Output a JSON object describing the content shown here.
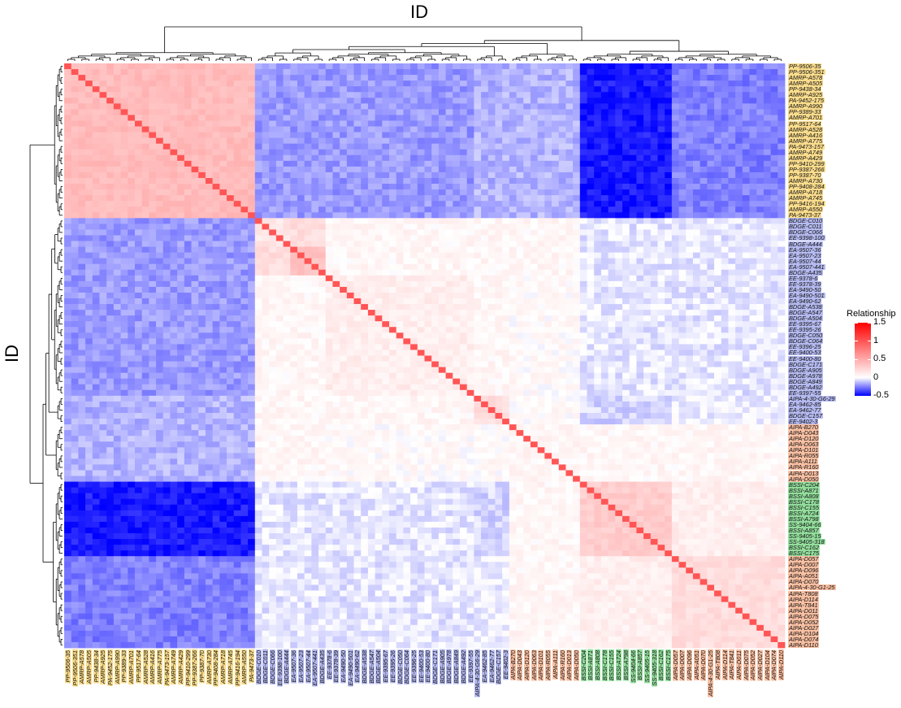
{
  "chart_data": {
    "type": "heatmap",
    "title": "",
    "xlabel": "ID",
    "ylabel": "ID",
    "legend": {
      "title": "Relationship",
      "ticks": [
        "1.5",
        "1",
        "0.5",
        "0",
        "-0.5"
      ],
      "tick_values": [
        1.5,
        1,
        0.5,
        0,
        -0.5
      ],
      "range": [
        -0.5,
        1.5
      ],
      "low_color": "#0000FF",
      "mid_color": "#FFFFFF",
      "high_color": "#FF0000",
      "placement": "right"
    },
    "group_colors": {
      "AMRP_PP_PA": "#F9DC8C",
      "BDGE_EE_EA": "#B5BAF0",
      "AIPA": "#F8BFA2",
      "BSSI_SS": "#93DD9C"
    },
    "labels": [
      {
        "id": "PP-9506-35",
        "g": "AMRP_PP_PA"
      },
      {
        "id": "PP-9506-351",
        "g": "AMRP_PP_PA"
      },
      {
        "id": "AMRP-A578",
        "g": "AMRP_PP_PA"
      },
      {
        "id": "AMRP-A505",
        "g": "AMRP_PP_PA"
      },
      {
        "id": "PP-9438-34",
        "g": "AMRP_PP_PA"
      },
      {
        "id": "AMRP-A925",
        "g": "AMRP_PP_PA"
      },
      {
        "id": "PA-9452-175",
        "g": "AMRP_PP_PA"
      },
      {
        "id": "AMRP-A990",
        "g": "AMRP_PP_PA"
      },
      {
        "id": "PP-9389-33",
        "g": "AMRP_PP_PA"
      },
      {
        "id": "AMRP-A701",
        "g": "AMRP_PP_PA"
      },
      {
        "id": "PP-9517-64",
        "g": "AMRP_PP_PA"
      },
      {
        "id": "AMRP-A528",
        "g": "AMRP_PP_PA"
      },
      {
        "id": "AMRP-A416",
        "g": "AMRP_PP_PA"
      },
      {
        "id": "AMRP-A775",
        "g": "AMRP_PP_PA"
      },
      {
        "id": "PA-9473-157",
        "g": "AMRP_PP_PA"
      },
      {
        "id": "AMRP-A749",
        "g": "AMRP_PP_PA"
      },
      {
        "id": "AMRP-A429",
        "g": "AMRP_PP_PA"
      },
      {
        "id": "PP-9410-299",
        "g": "AMRP_PP_PA"
      },
      {
        "id": "PP-9387-266",
        "g": "AMRP_PP_PA"
      },
      {
        "id": "PP-9387-70",
        "g": "AMRP_PP_PA"
      },
      {
        "id": "AMRP-A730",
        "g": "AMRP_PP_PA"
      },
      {
        "id": "PP-9408-284",
        "g": "AMRP_PP_PA"
      },
      {
        "id": "AMRP-A718",
        "g": "AMRP_PP_PA"
      },
      {
        "id": "AMRP-A745",
        "g": "AMRP_PP_PA"
      },
      {
        "id": "PP-9416-194",
        "g": "AMRP_PP_PA"
      },
      {
        "id": "AMRP-A550",
        "g": "AMRP_PP_PA"
      },
      {
        "id": "PA-9473-37",
        "g": "AMRP_PP_PA"
      },
      {
        "id": "BDGE-C010",
        "g": "BDGE_EE_EA"
      },
      {
        "id": "BDGE-C011",
        "g": "BDGE_EE_EA"
      },
      {
        "id": "BDGE-C066",
        "g": "BDGE_EE_EA"
      },
      {
        "id": "EE-9398-100",
        "g": "BDGE_EE_EA"
      },
      {
        "id": "BDGE-A444",
        "g": "BDGE_EE_EA"
      },
      {
        "id": "EA-9507-36",
        "g": "BDGE_EE_EA"
      },
      {
        "id": "EA-9507-23",
        "g": "BDGE_EE_EA"
      },
      {
        "id": "EA-9507-44",
        "g": "BDGE_EE_EA"
      },
      {
        "id": "EA-9507-441",
        "g": "BDGE_EE_EA"
      },
      {
        "id": "BDGE-A435",
        "g": "BDGE_EE_EA"
      },
      {
        "id": "EE-9378-6",
        "g": "BDGE_EE_EA"
      },
      {
        "id": "EE-9378-39",
        "g": "BDGE_EE_EA"
      },
      {
        "id": "EA-9490-50",
        "g": "BDGE_EE_EA"
      },
      {
        "id": "EA-9490-501",
        "g": "BDGE_EE_EA"
      },
      {
        "id": "EA-9490-62",
        "g": "BDGE_EE_EA"
      },
      {
        "id": "BDGE-A538",
        "g": "BDGE_EE_EA"
      },
      {
        "id": "BDGE-A547",
        "g": "BDGE_EE_EA"
      },
      {
        "id": "BDGE-A504",
        "g": "BDGE_EE_EA"
      },
      {
        "id": "EE-9395-67",
        "g": "BDGE_EE_EA"
      },
      {
        "id": "EE-9395-26",
        "g": "BDGE_EE_EA"
      },
      {
        "id": "BDGE-C050",
        "g": "BDGE_EE_EA"
      },
      {
        "id": "BDGE-C064",
        "g": "BDGE_EE_EA"
      },
      {
        "id": "EE-9396-25",
        "g": "BDGE_EE_EA"
      },
      {
        "id": "EE-9400-53",
        "g": "BDGE_EE_EA"
      },
      {
        "id": "EE-9400-80",
        "g": "BDGE_EE_EA"
      },
      {
        "id": "BDGE-C171",
        "g": "BDGE_EE_EA"
      },
      {
        "id": "BDGE-A905",
        "g": "BDGE_EE_EA"
      },
      {
        "id": "BDGE-A978",
        "g": "BDGE_EE_EA"
      },
      {
        "id": "BDGE-A849",
        "g": "BDGE_EE_EA"
      },
      {
        "id": "BDGE-A492",
        "g": "BDGE_EE_EA"
      },
      {
        "id": "EE-9397-55",
        "g": "BDGE_EE_EA"
      },
      {
        "id": "AIPA-4-30-G6-29",
        "g": "BDGE_EE_EA"
      },
      {
        "id": "EA-9462-85",
        "g": "BDGE_EE_EA"
      },
      {
        "id": "EA-9462-77",
        "g": "BDGE_EE_EA"
      },
      {
        "id": "BDGE-C157",
        "g": "BDGE_EE_EA"
      },
      {
        "id": "EE-9402-3",
        "g": "BDGE_EE_EA"
      },
      {
        "id": "AIPA-B270",
        "g": "AIPA"
      },
      {
        "id": "AIPA-D043",
        "g": "AIPA"
      },
      {
        "id": "AIPA-D120",
        "g": "AIPA"
      },
      {
        "id": "AIPA-D063",
        "g": "AIPA"
      },
      {
        "id": "AIPA-D101",
        "g": "AIPA"
      },
      {
        "id": "AIPA-R055",
        "g": "AIPA"
      },
      {
        "id": "AIPA-A111",
        "g": "AIPA"
      },
      {
        "id": "AIPA-R160",
        "g": "AIPA"
      },
      {
        "id": "AIPA-D013",
        "g": "AIPA"
      },
      {
        "id": "AIPA-D050",
        "g": "AIPA"
      },
      {
        "id": "BSSI-C204",
        "g": "BSSI_SS"
      },
      {
        "id": "BSSI-A871",
        "g": "BSSI_SS"
      },
      {
        "id": "BSSI-A808",
        "g": "BSSI_SS"
      },
      {
        "id": "BSSI-C178",
        "g": "BSSI_SS"
      },
      {
        "id": "BSSI-C155",
        "g": "BSSI_SS"
      },
      {
        "id": "BSSI-A724",
        "g": "BSSI_SS"
      },
      {
        "id": "BSSI-A798",
        "g": "BSSI_SS"
      },
      {
        "id": "SS-9404-66",
        "g": "BSSI_SS"
      },
      {
        "id": "BSSI-A857",
        "g": "BSSI_SS"
      },
      {
        "id": "SS-9405-15",
        "g": "BSSI_SS"
      },
      {
        "id": "SS-9405-318",
        "g": "BSSI_SS"
      },
      {
        "id": "BSSI-C162",
        "g": "BSSI_SS"
      },
      {
        "id": "BSSI-C175",
        "g": "BSSI_SS"
      },
      {
        "id": "AIPA-D057",
        "g": "AIPA"
      },
      {
        "id": "AIPA-D007",
        "g": "AIPA"
      },
      {
        "id": "AIPA-D096",
        "g": "AIPA"
      },
      {
        "id": "AIPA-A051",
        "g": "AIPA"
      },
      {
        "id": "AIPA-D070",
        "g": "AIPA"
      },
      {
        "id": "AIPA-4-30-G1-25",
        "g": "AIPA"
      },
      {
        "id": "AIPA-T808",
        "g": "AIPA"
      },
      {
        "id": "AIPA-D114",
        "g": "AIPA"
      },
      {
        "id": "AIPA-T841",
        "g": "AIPA"
      },
      {
        "id": "AIPA-D011",
        "g": "AIPA"
      },
      {
        "id": "AIPA-D075",
        "g": "AIPA"
      },
      {
        "id": "AIPA-D052",
        "g": "AIPA"
      },
      {
        "id": "AIPA-D027",
        "g": "AIPA"
      },
      {
        "id": "AIPA-D104",
        "g": "AIPA"
      },
      {
        "id": "AIPA-D074",
        "g": "AIPA"
      },
      {
        "id": "AIPA-D110",
        "g": "AIPA"
      }
    ],
    "clusters": [
      {
        "first": "PP-9506-35",
        "last": "PA-9473-37"
      },
      {
        "first": "BDGE-C010",
        "last": "BDGE-A444"
      },
      {
        "first": "EA-9507-36",
        "last": "BDGE-A435"
      },
      {
        "first": "EE-9378-6",
        "last": "EE-9397-55"
      },
      {
        "first": "AIPA-4-30-G6-29",
        "last": "EE-9402-3"
      },
      {
        "first": "AIPA-B270",
        "last": "AIPA-D050"
      },
      {
        "first": "BSSI-C204",
        "last": "BSSI-C175"
      },
      {
        "first": "AIPA-D057",
        "last": "AIPA-D110"
      }
    ],
    "cluster_mean_relationship": [
      [
        0.4,
        -0.2,
        -0.2,
        -0.2,
        -0.15,
        -0.15,
        -0.45,
        -0.25
      ],
      [
        -0.2,
        0.15,
        0.2,
        0.05,
        0.05,
        0.05,
        -0.05,
        -0.05
      ],
      [
        -0.2,
        0.2,
        0.35,
        0.05,
        0.05,
        0.05,
        -0.05,
        -0.05
      ],
      [
        -0.2,
        0.05,
        0.05,
        0.1,
        0.05,
        0.03,
        -0.05,
        -0.05
      ],
      [
        -0.15,
        0.05,
        0.05,
        0.05,
        0.2,
        0.03,
        -0.08,
        -0.03
      ],
      [
        -0.15,
        0.05,
        0.05,
        0.03,
        0.03,
        0.05,
        0.05,
        0.05
      ],
      [
        -0.45,
        -0.05,
        -0.05,
        -0.05,
        -0.08,
        0.05,
        0.3,
        0.1
      ],
      [
        -0.25,
        -0.05,
        -0.05,
        -0.05,
        -0.03,
        0.05,
        0.1,
        0.2
      ]
    ],
    "self_relationship": 1.0,
    "cluster_tree": [
      0,
      [
        [
          [
            [
              [
                1,
                2
              ],
              3
            ],
            4
          ],
          5
        ],
        [
          6,
          7
        ]
      ]
    ]
  }
}
